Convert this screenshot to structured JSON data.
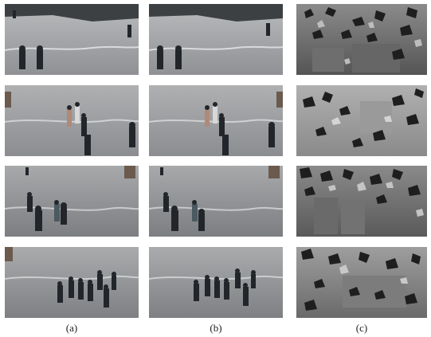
{
  "figure": {
    "captions": [
      "(a)",
      "(b)",
      "(c)"
    ],
    "columns": [
      {
        "id": "a",
        "content": "photo"
      },
      {
        "id": "b",
        "content": "photo"
      },
      {
        "id": "c",
        "content": "depth-map"
      }
    ],
    "rows": 4,
    "colors": {
      "pavement": "#a7a9ab",
      "pavement_dark": "#7c7e81",
      "shadow": "#3a3c3f",
      "person": "#22262b",
      "depth_light": "#b6b6b6",
      "depth_mid": "#7a7a7a",
      "depth_dark": "#1e1e1e"
    }
  }
}
